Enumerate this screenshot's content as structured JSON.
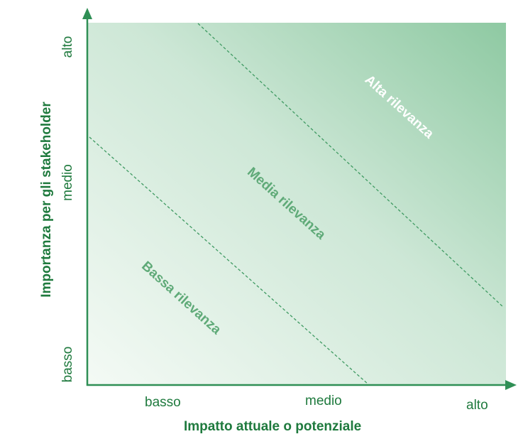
{
  "diagram": {
    "x_axis": {
      "title": "Impatto attuale o potenziale",
      "ticks": [
        "basso",
        "medio",
        "alto"
      ]
    },
    "y_axis": {
      "title": "Importanza per gli stakeholder",
      "ticks": [
        "basso",
        "medio",
        "alto"
      ]
    },
    "zones": [
      {
        "label": "Bassa rilevanza",
        "color": "#5faa78"
      },
      {
        "label": "Media rilevanza",
        "color": "#5faa78"
      },
      {
        "label": "Alta rilevanza",
        "color": "#ffffff"
      }
    ],
    "colors": {
      "axis": "#2f8f55",
      "gradient_light": "#f4faf5",
      "gradient_dark": "#8ec9a2",
      "divider": "#3f9a62"
    }
  }
}
